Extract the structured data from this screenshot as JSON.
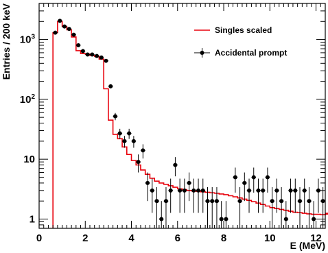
{
  "chart_data": {
    "type": "line",
    "xlabel": "E (MeV)",
    "ylabel": "Entries / 200 keV",
    "xlim": [
      0,
      12.4
    ],
    "ylim": [
      0.7,
      4000
    ],
    "yscale": "log",
    "grid": false,
    "legend_position": "top-right",
    "x_tick_labels": [
      "0",
      "2",
      "4",
      "6",
      "8",
      "10",
      "12"
    ],
    "y_tick_labels": [
      {
        "value": 1,
        "label": "1"
      },
      {
        "value": 10,
        "label": "10"
      },
      {
        "value": 100,
        "label": "10²"
      },
      {
        "value": 1000,
        "label": "10³"
      }
    ],
    "series": [
      {
        "name": "Singles scaled",
        "kind": "histogram",
        "color": "#e8000b",
        "bin_width": 0.2,
        "first_bin_low": 0.6,
        "values": [
          1300,
          2000,
          1650,
          1450,
          1100,
          650,
          580,
          570,
          540,
          520,
          470,
          150,
          45,
          26,
          22,
          16,
          12,
          9.5,
          8.0,
          6.6,
          5.6,
          4.8,
          4.3,
          4.0,
          3.8,
          3.6,
          3.4,
          3.2,
          3.1,
          3.0,
          2.95,
          2.9,
          2.85,
          2.8,
          2.75,
          2.7,
          2.62,
          2.55,
          2.45,
          2.35,
          2.25,
          2.15,
          2.05,
          1.95,
          1.85,
          1.75,
          1.65,
          1.55,
          1.5,
          1.45,
          1.4,
          1.35,
          1.3,
          1.28,
          1.25,
          1.22,
          1.2,
          1.2,
          1.18,
          1.2,
          1.22,
          1.25
        ]
      },
      {
        "name": "Accidental prompt",
        "kind": "points",
        "color": "#000000",
        "points": [
          [
            0.7,
            1300
          ],
          [
            0.9,
            2050
          ],
          [
            1.1,
            1650
          ],
          [
            1.3,
            1500
          ],
          [
            1.5,
            1200
          ],
          [
            1.7,
            800
          ],
          [
            1.9,
            640
          ],
          [
            2.1,
            560
          ],
          [
            2.3,
            560
          ],
          [
            2.5,
            530
          ],
          [
            2.7,
            500
          ],
          [
            2.9,
            440
          ],
          [
            3.1,
            165
          ],
          [
            3.3,
            52
          ],
          [
            3.5,
            27
          ],
          [
            3.7,
            20
          ],
          [
            3.9,
            27
          ],
          [
            4.1,
            20
          ],
          [
            4.3,
            9
          ],
          [
            4.5,
            14
          ],
          [
            4.7,
            4
          ],
          [
            4.9,
            3
          ],
          [
            5.1,
            2
          ],
          [
            5.3,
            1
          ],
          [
            5.5,
            2
          ],
          [
            5.7,
            3
          ],
          [
            5.9,
            8
          ],
          [
            6.1,
            3
          ],
          [
            6.3,
            3
          ],
          [
            6.5,
            4
          ],
          [
            6.7,
            3
          ],
          [
            6.9,
            3
          ],
          [
            7.1,
            3
          ],
          [
            7.3,
            2
          ],
          [
            7.5,
            2
          ],
          [
            7.7,
            2
          ],
          [
            7.9,
            1
          ],
          [
            8.1,
            1
          ],
          [
            8.5,
            5
          ],
          [
            8.7,
            2
          ],
          [
            8.9,
            4
          ],
          [
            9.1,
            3
          ],
          [
            9.3,
            5
          ],
          [
            9.5,
            3
          ],
          [
            9.7,
            3
          ],
          [
            9.9,
            5
          ],
          [
            10.1,
            2
          ],
          [
            10.3,
            3
          ],
          [
            10.5,
            2
          ],
          [
            10.7,
            1
          ],
          [
            10.9,
            3
          ],
          [
            11.1,
            3
          ],
          [
            11.3,
            2
          ],
          [
            11.5,
            3
          ],
          [
            11.7,
            2
          ],
          [
            11.9,
            1
          ],
          [
            12.1,
            3
          ],
          [
            12.3,
            2
          ]
        ]
      }
    ]
  }
}
